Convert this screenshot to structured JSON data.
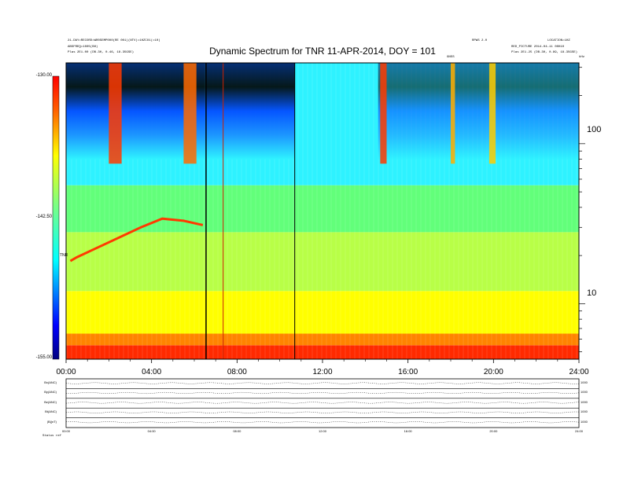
{
  "header": {
    "left_line1": "21-DAY=RECORD=WR0SEMP000(RE 001)(NTV)=1HZCO1(=10)",
    "left_line2": "ABSFREQ=1005(BH)",
    "left_line3": "Plas   2E1.00 (DB.30, 0.46, 18.35GSE)",
    "right_line1": "RPWS 2.0",
    "right_line2": "LOCATION=1HZ",
    "right_line3": "RED_PICTURE  2014-04-11 00H10",
    "right_line4": "Plas   2E1.25 (DB.30, 0.89, 18.35GSE)",
    "marker_label": "GNSS",
    "corner_label": "kHz"
  },
  "chart_data": {
    "type": "heatmap",
    "title": "Dynamic Spectrum for TNR 11-APR-2014, DOY = 101",
    "x_ticks": [
      "00:00",
      "04:00",
      "08:00",
      "12:00",
      "16:00",
      "20:00",
      "24:00"
    ],
    "x_range_hours": [
      0,
      24
    ],
    "y_axis": {
      "scale": "log",
      "range_khz": [
        4.5,
        320
      ],
      "tick_labels": [
        "10",
        "100"
      ],
      "tick_values": [
        10,
        100
      ]
    },
    "colorbar": {
      "tick_labels": [
        "-130.00",
        "-142.50",
        "-155.00"
      ],
      "range": [
        -155,
        -130
      ],
      "label": "TNR"
    },
    "vertical_lines_hours": [
      6.55,
      7.35,
      10.7
    ],
    "bands": [
      {
        "freq_low_khz": 4.5,
        "freq_high_khz": 5.5,
        "color": "#ff2a00"
      },
      {
        "freq_low_khz": 5.5,
        "freq_high_khz": 6.5,
        "color": "#ff8400"
      },
      {
        "freq_low_khz": 6.5,
        "freq_high_khz": 12,
        "color": "#ffff00"
      },
      {
        "freq_low_khz": 12,
        "freq_high_khz": 28,
        "color": "#b8ff47"
      },
      {
        "freq_low_khz": 28,
        "freq_high_khz": 55,
        "color": "#62ff7a"
      },
      {
        "freq_low_khz": 55,
        "freq_high_khz": 320,
        "color": "#2ef2ff"
      }
    ],
    "bursts": [
      {
        "hour_start": 2.0,
        "hour_end": 2.6,
        "color": "#ff3a00"
      },
      {
        "hour_start": 5.5,
        "hour_end": 6.1,
        "color": "#ff6a00"
      },
      {
        "hour_start": 14.7,
        "hour_end": 15.0,
        "color": "#ff3a00"
      },
      {
        "hour_start": 18.0,
        "hour_end": 18.2,
        "color": "#ffae00"
      },
      {
        "hour_start": 19.8,
        "hour_end": 20.1,
        "color": "#ffcc00"
      }
    ],
    "emission_line": {
      "color": "#ff3a00",
      "points": [
        [
          0.2,
          18.5
        ],
        [
          0.5,
          19.5
        ],
        [
          3.5,
          30
        ],
        [
          4.5,
          34
        ],
        [
          5.5,
          33
        ],
        [
          6.4,
          31
        ]
      ]
    }
  },
  "bottom_panel": {
    "x_ticks": [
      "00:00",
      "04:00",
      "08:00",
      "12:00",
      "16:00",
      "20:00",
      "24:00"
    ],
    "strips": [
      {
        "label": "Bx(ANC)",
        "right": "1000"
      },
      {
        "label": "By(ANC)",
        "right": "1000"
      },
      {
        "label": "Bz(ANC)",
        "right": "1000"
      },
      {
        "label": "Bt(ANC)",
        "right": "1000"
      },
      {
        "label": "|B|(nT)",
        "right": "1000"
      }
    ],
    "footer_label": "Status  ref"
  }
}
